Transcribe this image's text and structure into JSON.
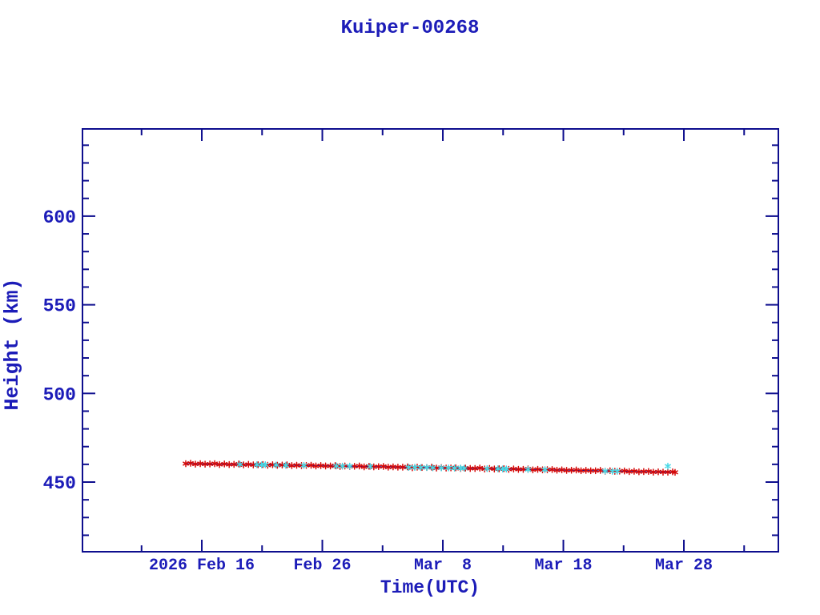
{
  "chart_data": {
    "type": "scatter",
    "title": "Kuiper-00268",
    "xlabel": "Time(UTC)",
    "ylabel": "Height (km)",
    "colors": {
      "axis": "#0e0e8e",
      "text": "#1c1cb8",
      "red_marker": "#d40808",
      "cyan_marker": "#48d8e6",
      "trend_line": "#0e0e8e"
    },
    "x_axis": {
      "major_ticks": [
        {
          "day": 1.33,
          "label": "2026 Feb 16"
        },
        {
          "day": 11.33,
          "label": "Feb 26"
        },
        {
          "day": 21.33,
          "label": "Mar  8"
        },
        {
          "day": 31.33,
          "label": "Mar 18"
        },
        {
          "day": 41.33,
          "label": "Mar 28"
        }
      ],
      "minor_tick_days": [
        -3.67,
        6.33,
        16.33,
        26.33,
        36.33,
        46.33
      ],
      "range_days": [
        -8.57,
        49.17
      ]
    },
    "y_axis": {
      "major_ticks": [
        {
          "value": 450,
          "label": "450"
        },
        {
          "value": 500,
          "label": "500"
        },
        {
          "value": 550,
          "label": "550"
        },
        {
          "value": 600,
          "label": "600"
        }
      ],
      "minor_tick_values": [
        420,
        430,
        440,
        460,
        470,
        480,
        490,
        510,
        520,
        530,
        540,
        560,
        570,
        580,
        590,
        610,
        620,
        630,
        640
      ],
      "range": [
        410.7,
        649.2
      ]
    },
    "series": [
      {
        "name": "trend-line",
        "type": "line",
        "color": "#0e0e8e",
        "points": [
          [
            0,
            460.4
          ],
          [
            4,
            460.0
          ],
          [
            8,
            459.6
          ],
          [
            12,
            459.1
          ],
          [
            16,
            458.7
          ],
          [
            20,
            458.2
          ],
          [
            24,
            457.7
          ],
          [
            28,
            457.2
          ],
          [
            32,
            456.7
          ],
          [
            36,
            456.2
          ],
          [
            40,
            455.6
          ],
          [
            40.6,
            455.5
          ]
        ]
      },
      {
        "name": "height-measurements-red",
        "type": "scatter",
        "marker": "asterisk",
        "color": "#d40808",
        "points": [
          [
            0,
            460.4
          ],
          [
            0.4,
            460.6
          ],
          [
            0.8,
            460.1
          ],
          [
            1.2,
            460.4
          ],
          [
            1.6,
            460.1
          ],
          [
            2,
            460.2
          ],
          [
            2.4,
            460.4
          ],
          [
            2.8,
            459.9
          ],
          [
            3.2,
            460.2
          ],
          [
            3.6,
            459.9
          ],
          [
            4,
            460.0
          ],
          [
            4.4,
            460.2
          ],
          [
            4.8,
            459.7
          ],
          [
            5.2,
            460.0
          ],
          [
            5.6,
            459.7
          ],
          [
            6,
            459.8
          ],
          [
            6.4,
            459.9
          ],
          [
            6.8,
            459.5
          ],
          [
            7.2,
            459.8
          ],
          [
            7.6,
            459.5
          ],
          [
            8,
            459.6
          ],
          [
            8.4,
            459.7
          ],
          [
            8.8,
            459.3
          ],
          [
            9.2,
            459.5
          ],
          [
            9.6,
            459.3
          ],
          [
            10,
            459.4
          ],
          [
            10.4,
            459.5
          ],
          [
            10.8,
            459.1
          ],
          [
            11.2,
            459.3
          ],
          [
            11.6,
            459.1
          ],
          [
            12,
            459.1
          ],
          [
            12.4,
            459.3
          ],
          [
            12.8,
            458.8
          ],
          [
            13.2,
            459.1
          ],
          [
            13.6,
            458.8
          ],
          [
            14,
            458.9
          ],
          [
            14.4,
            459.1
          ],
          [
            14.8,
            458.6
          ],
          [
            15.2,
            458.9
          ],
          [
            15.6,
            458.6
          ],
          [
            16,
            458.7
          ],
          [
            16.4,
            458.8
          ],
          [
            16.8,
            458.4
          ],
          [
            17.2,
            458.6
          ],
          [
            17.6,
            458.4
          ],
          [
            18,
            458.4
          ],
          [
            18.4,
            458.6
          ],
          [
            18.8,
            458.1
          ],
          [
            19.2,
            458.4
          ],
          [
            19.6,
            458.2
          ],
          [
            20,
            458.2
          ],
          [
            20.4,
            458.4
          ],
          [
            20.8,
            457.9
          ],
          [
            21.2,
            458.2
          ],
          [
            21.6,
            457.9
          ],
          [
            22,
            458.0
          ],
          [
            22.4,
            458.1
          ],
          [
            22.8,
            457.7
          ],
          [
            23.2,
            457.9
          ],
          [
            23.6,
            457.7
          ],
          [
            24,
            457.7
          ],
          [
            24.4,
            457.9
          ],
          [
            24.8,
            457.4
          ],
          [
            25.2,
            457.7
          ],
          [
            25.6,
            457.4
          ],
          [
            26,
            457.5
          ],
          [
            26.4,
            457.6
          ],
          [
            26.8,
            457.2
          ],
          [
            27.2,
            457.4
          ],
          [
            27.6,
            457.2
          ],
          [
            28,
            457.2
          ],
          [
            28.4,
            457.4
          ],
          [
            28.8,
            456.9
          ],
          [
            29.2,
            457.2
          ],
          [
            29.6,
            456.9
          ],
          [
            30,
            457.0
          ],
          [
            30.4,
            457.1
          ],
          [
            30.8,
            456.7
          ],
          [
            31.2,
            456.9
          ],
          [
            31.6,
            456.6
          ],
          [
            32,
            456.7
          ],
          [
            32.4,
            456.8
          ],
          [
            32.8,
            456.4
          ],
          [
            33.2,
            456.6
          ],
          [
            33.6,
            456.4
          ],
          [
            34,
            456.4
          ],
          [
            34.4,
            456.6
          ],
          [
            34.8,
            456.1
          ],
          [
            35.2,
            456.4
          ],
          [
            35.6,
            456.1
          ],
          [
            36,
            456.2
          ],
          [
            36.4,
            456.3
          ],
          [
            36.8,
            455.9
          ],
          [
            37.2,
            456.1
          ],
          [
            37.6,
            455.8
          ],
          [
            38,
            455.9
          ],
          [
            38.4,
            456.0
          ],
          [
            38.8,
            455.6
          ],
          [
            39.2,
            455.8
          ],
          [
            39.6,
            455.6
          ],
          [
            40,
            455.6
          ],
          [
            40.4,
            455.8
          ],
          [
            40.6,
            455.5
          ]
        ]
      },
      {
        "name": "height-measurements-cyan",
        "type": "scatter",
        "marker": "asterisk",
        "color": "#48d8e6",
        "points": [
          [
            4.5,
            460.0
          ],
          [
            5.9,
            459.8
          ],
          [
            6.3,
            459.7
          ],
          [
            6.6,
            459.8
          ],
          [
            7.5,
            459.6
          ],
          [
            8.3,
            459.5
          ],
          [
            9.8,
            459.4
          ],
          [
            12.5,
            459.1
          ],
          [
            13.0,
            459.0
          ],
          [
            13.6,
            459.0
          ],
          [
            15.3,
            458.8
          ],
          [
            18.5,
            458.3
          ],
          [
            19.0,
            458.3
          ],
          [
            19.5,
            458.2
          ],
          [
            20.0,
            458.2
          ],
          [
            20.5,
            458.1
          ],
          [
            21.2,
            458.0
          ],
          [
            21.8,
            458.0
          ],
          [
            22.3,
            457.9
          ],
          [
            22.8,
            457.9
          ],
          [
            23.1,
            457.8
          ],
          [
            25.0,
            457.6
          ],
          [
            25.9,
            457.5
          ],
          [
            26.3,
            457.4
          ],
          [
            26.6,
            457.4
          ],
          [
            28.4,
            457.1
          ],
          [
            29.8,
            457.0
          ],
          [
            34.8,
            456.2
          ],
          [
            35.4,
            456.1
          ],
          [
            35.8,
            456.1
          ],
          [
            40.0,
            459.0
          ]
        ]
      }
    ]
  }
}
